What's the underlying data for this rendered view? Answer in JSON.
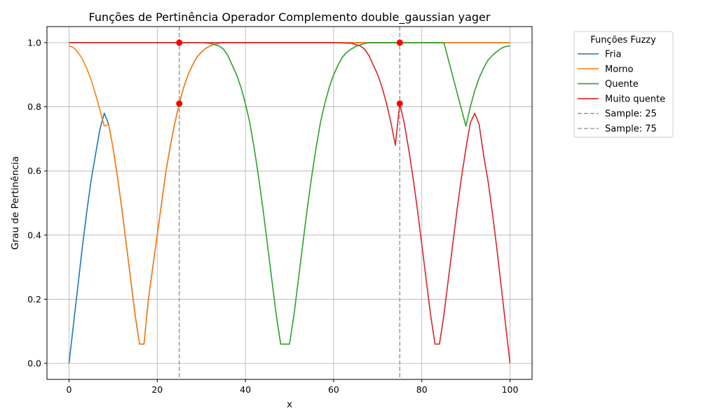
{
  "chart_data": {
    "type": "line",
    "title": "Funções de Pertinência Operador Complemento double_gaussian yager",
    "xlabel": "x",
    "ylabel": "Grau de Pertinência",
    "xlim": [
      -5,
      105
    ],
    "ylim": [
      -0.05,
      1.05
    ],
    "xticks": [
      0,
      20,
      40,
      60,
      80,
      100
    ],
    "yticks": [
      0.0,
      0.2,
      0.4,
      0.6,
      0.8,
      1.0
    ],
    "xtick_labels": [
      "0",
      "20",
      "40",
      "60",
      "80",
      "100"
    ],
    "ytick_labels": [
      "0.0",
      "0.2",
      "0.4",
      "0.6",
      "0.8",
      "1.0"
    ],
    "grid": true,
    "legend": {
      "title": "Funções Fuzzy",
      "placement": "outside-top-right"
    },
    "series": [
      {
        "name": "Fria",
        "color": "#1f77b4",
        "x": [
          0,
          1,
          2,
          3,
          4,
          5,
          6,
          7,
          8,
          9,
          10,
          11,
          12,
          13,
          14,
          15,
          16,
          16.5,
          17,
          18,
          19,
          20,
          21,
          22,
          23,
          24,
          25,
          26,
          27,
          28,
          29,
          30,
          31,
          32,
          33,
          34,
          35,
          40,
          50,
          60,
          65,
          68,
          70,
          72,
          75,
          80,
          90,
          100
        ],
        "y": [
          0.0,
          0.12,
          0.24,
          0.36,
          0.47,
          0.57,
          0.65,
          0.73,
          0.78,
          0.745,
          0.67,
          0.58,
          0.48,
          0.37,
          0.26,
          0.15,
          0.06,
          0.06,
          0.06,
          0.2,
          0.3,
          0.4,
          0.5,
          0.6,
          0.68,
          0.75,
          0.81,
          0.86,
          0.9,
          0.93,
          0.955,
          0.97,
          0.982,
          0.99,
          0.995,
          0.998,
          1.0,
          1.0,
          1.0,
          1.0,
          1.0,
          1.0,
          1.0,
          1.0,
          1.0,
          1.0,
          1.0,
          1.0
        ]
      },
      {
        "name": "Morno",
        "color": "#ff7f0e",
        "x": [
          0,
          1,
          2,
          3,
          4,
          5,
          6,
          7,
          8,
          9,
          10,
          11,
          12,
          13,
          14,
          15,
          16,
          16.5,
          17,
          18,
          19,
          20,
          21,
          22,
          23,
          24,
          25,
          26,
          27,
          28,
          29,
          30,
          31,
          32,
          33,
          34,
          35,
          40,
          50,
          60,
          70,
          75,
          80,
          90,
          100
        ],
        "y": [
          0.99,
          0.985,
          0.97,
          0.95,
          0.92,
          0.885,
          0.84,
          0.79,
          0.74,
          0.745,
          0.67,
          0.58,
          0.48,
          0.37,
          0.26,
          0.15,
          0.06,
          0.06,
          0.06,
          0.2,
          0.3,
          0.4,
          0.5,
          0.6,
          0.68,
          0.75,
          0.81,
          0.86,
          0.9,
          0.93,
          0.955,
          0.97,
          0.982,
          0.99,
          0.995,
          0.998,
          1.0,
          1.0,
          1.0,
          1.0,
          1.0,
          1.0,
          1.0,
          1.0,
          1.0
        ]
      },
      {
        "name": "Quente",
        "color": "#2ca02c",
        "x": [
          0,
          10,
          20,
          30,
          32,
          34,
          35,
          36,
          37,
          38,
          39,
          40,
          41,
          42,
          43,
          44,
          45,
          46,
          47,
          48,
          49,
          50,
          51,
          52,
          53,
          54,
          55,
          56,
          57,
          58,
          59,
          60,
          61,
          62,
          63,
          64,
          65,
          66,
          67,
          68,
          70,
          75,
          80,
          85,
          90,
          91,
          92,
          93,
          94,
          95,
          96,
          97,
          98,
          99,
          100
        ],
        "y": [
          1.0,
          1.0,
          1.0,
          1.0,
          0.998,
          0.99,
          0.98,
          0.96,
          0.93,
          0.9,
          0.86,
          0.81,
          0.75,
          0.67,
          0.58,
          0.48,
          0.37,
          0.26,
          0.15,
          0.06,
          0.06,
          0.06,
          0.15,
          0.26,
          0.37,
          0.48,
          0.58,
          0.67,
          0.75,
          0.81,
          0.86,
          0.9,
          0.93,
          0.955,
          0.97,
          0.98,
          0.988,
          0.993,
          0.997,
          1.0,
          1.0,
          1.0,
          1.0,
          1.0,
          0.74,
          0.8,
          0.85,
          0.89,
          0.92,
          0.945,
          0.96,
          0.972,
          0.982,
          0.988,
          0.99
        ]
      },
      {
        "name": "Muito quente",
        "color": "#d62728",
        "x": [
          0,
          10,
          20,
          30,
          40,
          50,
          60,
          64,
          66,
          67,
          68,
          69,
          70,
          71,
          72,
          73,
          74,
          75,
          76,
          77,
          78,
          79,
          80,
          81,
          82,
          83,
          83.5,
          84,
          85,
          86,
          87,
          88,
          89,
          90,
          91,
          92,
          93,
          94,
          95,
          96,
          97,
          98,
          99,
          100
        ],
        "y": [
          1.0,
          1.0,
          1.0,
          1.0,
          1.0,
          1.0,
          1.0,
          0.998,
          0.99,
          0.98,
          0.96,
          0.93,
          0.9,
          0.86,
          0.81,
          0.75,
          0.68,
          0.81,
          0.75,
          0.67,
          0.58,
          0.48,
          0.37,
          0.26,
          0.15,
          0.06,
          0.06,
          0.06,
          0.15,
          0.26,
          0.37,
          0.48,
          0.58,
          0.67,
          0.75,
          0.78,
          0.745,
          0.65,
          0.57,
          0.47,
          0.36,
          0.24,
          0.12,
          0.0
        ]
      },
      {
        "name": "Sample: 25",
        "color": "#a0a0a0",
        "dashed": true,
        "vline_x": 25
      },
      {
        "name": "Sample: 75",
        "color": "#a0a0a0",
        "dashed": true,
        "vline_x": 75
      }
    ],
    "markers": {
      "color": "#ff0000",
      "points": [
        {
          "x": 25,
          "y": 1.0
        },
        {
          "x": 25,
          "y": 0.81
        },
        {
          "x": 75,
          "y": 1.0
        },
        {
          "x": 75,
          "y": 0.81
        }
      ]
    }
  }
}
